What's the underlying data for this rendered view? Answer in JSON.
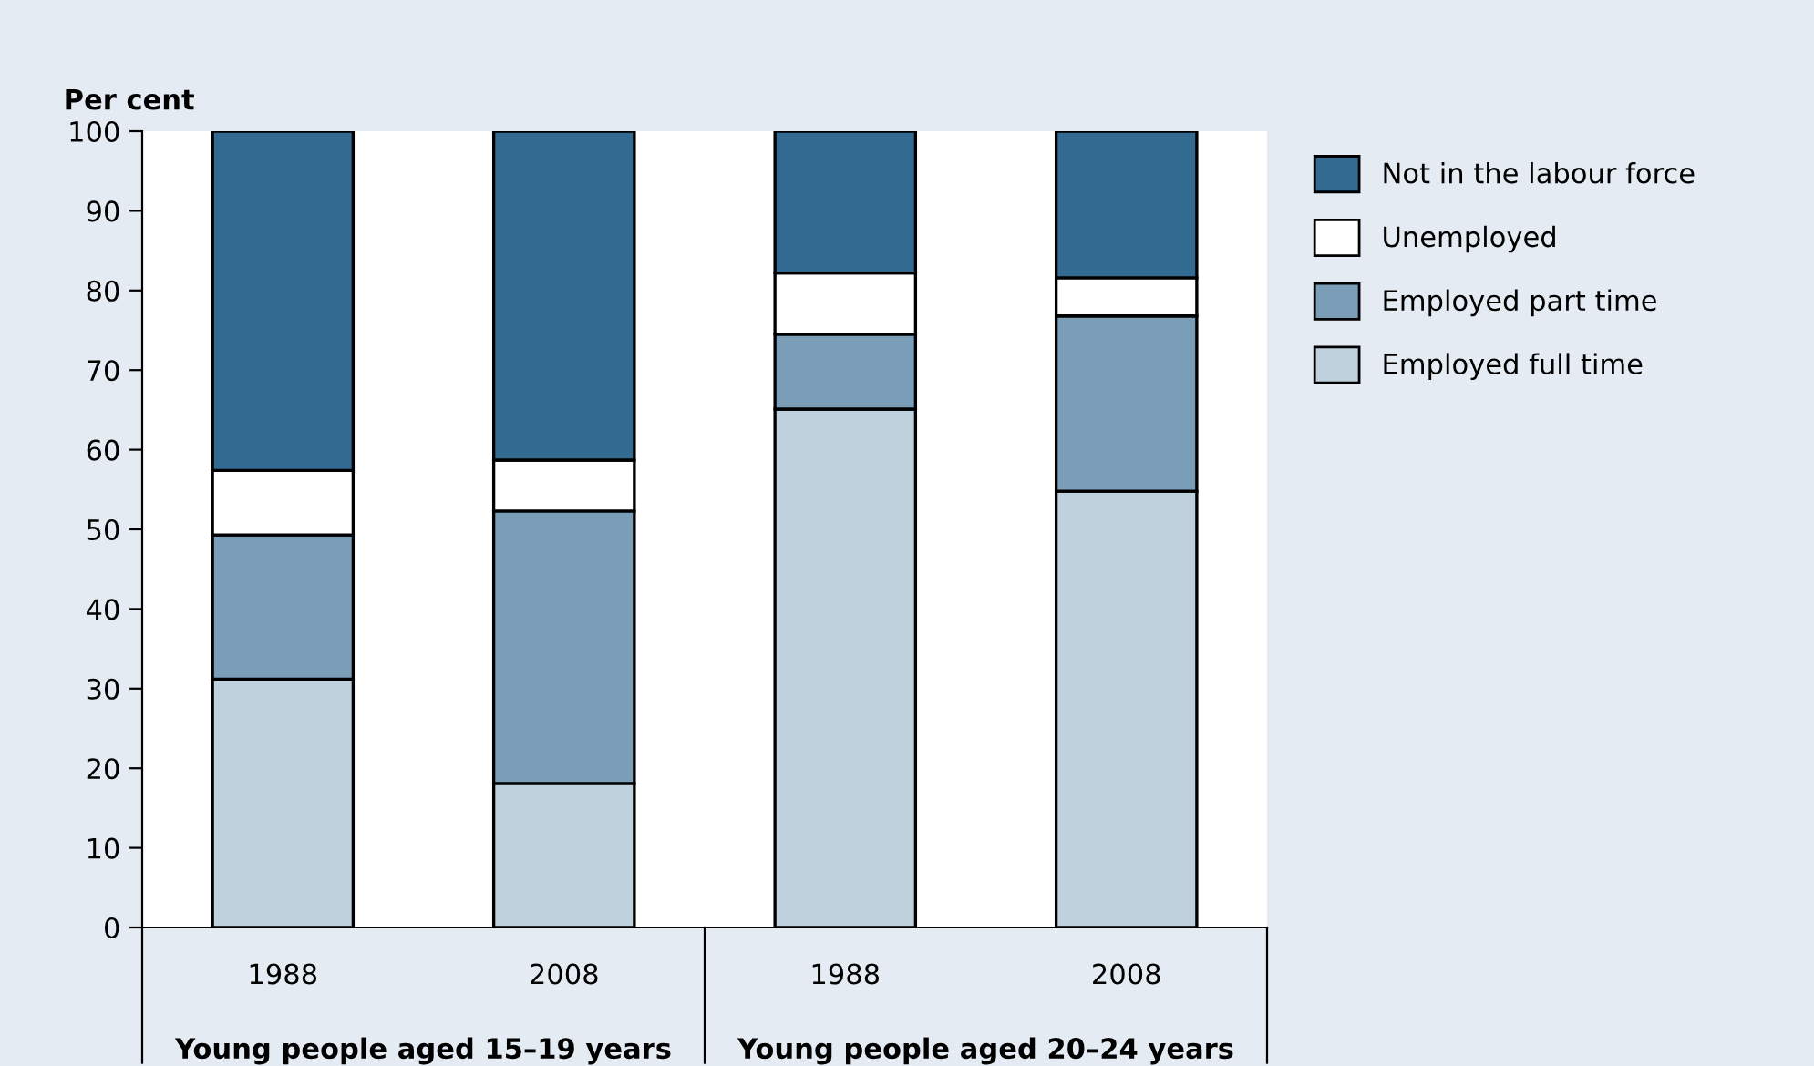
{
  "chart_data": {
    "type": "bar",
    "stacked": true,
    "ylabel": "Per cent",
    "categories": [
      "1988",
      "2008",
      "1988",
      "2008"
    ],
    "series": [
      {
        "name": "Employed full time",
        "color": "#bfd1dd",
        "values": [
          31.2,
          18.1,
          65.1,
          54.8
        ]
      },
      {
        "name": "Employed part time",
        "color": "#7a9db8",
        "values": [
          18.1,
          34.2,
          9.4,
          22.0
        ]
      },
      {
        "name": "Unemployed",
        "color": "#ffffff",
        "values": [
          8.1,
          6.4,
          7.7,
          4.8
        ]
      },
      {
        "name": "Not in the labour force",
        "color": "#336a91",
        "values": [
          42.6,
          41.3,
          17.8,
          18.4
        ]
      }
    ],
    "annotations": [
      "Young people aged 15–19 years",
      "Young people aged 20–24 years"
    ],
    "ylim": [
      0,
      100
    ],
    "yticks": [
      0,
      10,
      20,
      30,
      40,
      50,
      60,
      70,
      80,
      90,
      100
    ],
    "grid": false,
    "legend": "right"
  }
}
